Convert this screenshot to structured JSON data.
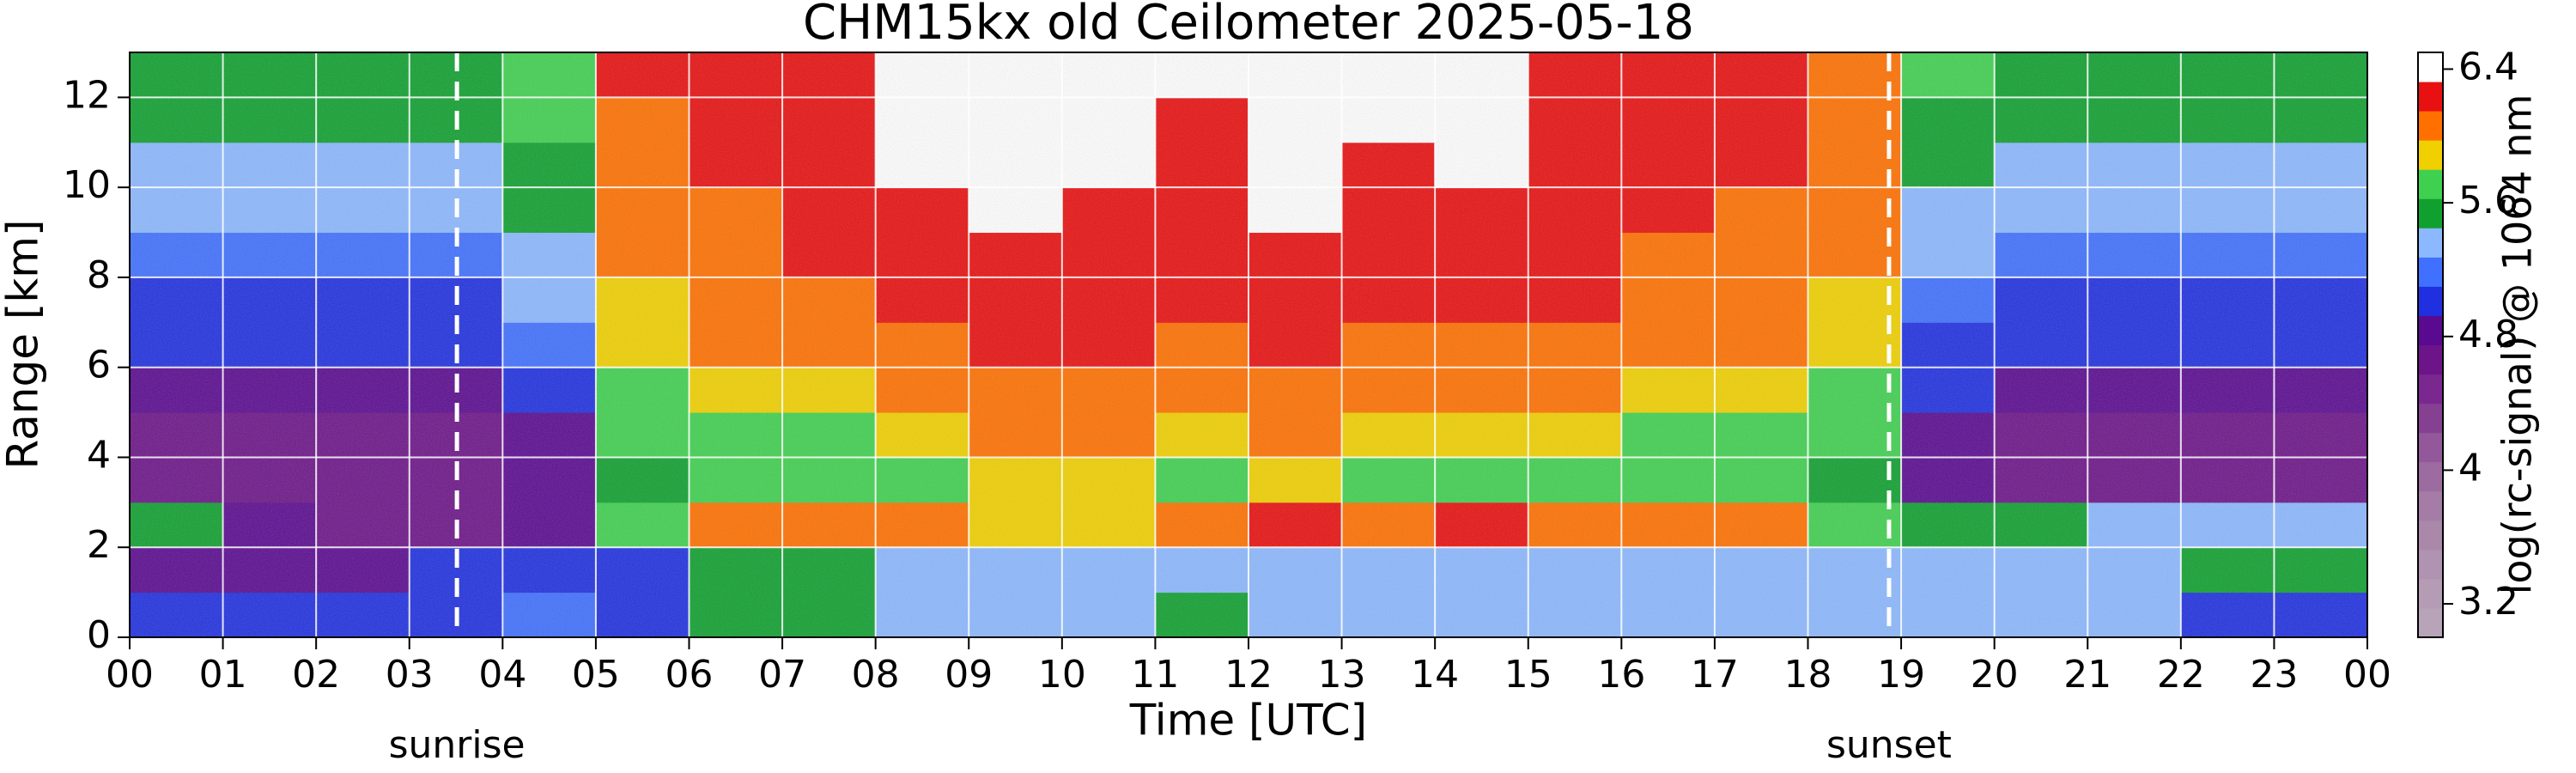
{
  "chart_data": {
    "type": "heatmap",
    "title": "CHM15kx old Ceilometer 2025-05-18",
    "xlabel": "Time [UTC]",
    "ylabel": "Range [km]",
    "colorbar_label": "log(rc-signal) @ 1064 nm",
    "xlim": [
      0,
      24
    ],
    "ylim": [
      0,
      13
    ],
    "xticks": [
      {
        "value": 0,
        "label": "00"
      },
      {
        "value": 1,
        "label": "01"
      },
      {
        "value": 2,
        "label": "02"
      },
      {
        "value": 3,
        "label": "03"
      },
      {
        "value": 4,
        "label": "04"
      },
      {
        "value": 5,
        "label": "05"
      },
      {
        "value": 6,
        "label": "06"
      },
      {
        "value": 7,
        "label": "07"
      },
      {
        "value": 8,
        "label": "08"
      },
      {
        "value": 9,
        "label": "09"
      },
      {
        "value": 10,
        "label": "10"
      },
      {
        "value": 11,
        "label": "11"
      },
      {
        "value": 12,
        "label": "12"
      },
      {
        "value": 13,
        "label": "13"
      },
      {
        "value": 14,
        "label": "14"
      },
      {
        "value": 15,
        "label": "15"
      },
      {
        "value": 16,
        "label": "16"
      },
      {
        "value": 17,
        "label": "17"
      },
      {
        "value": 18,
        "label": "18"
      },
      {
        "value": 19,
        "label": "19"
      },
      {
        "value": 20,
        "label": "20"
      },
      {
        "value": 21,
        "label": "21"
      },
      {
        "value": 22,
        "label": "22"
      },
      {
        "value": 23,
        "label": "23"
      },
      {
        "value": 24,
        "label": "00"
      }
    ],
    "yticks": [
      0,
      2,
      4,
      6,
      8,
      10,
      12
    ],
    "grid": true,
    "grid_color": "#ffffff",
    "zlim": [
      3.0,
      6.5
    ],
    "zticks": [
      3.2,
      4,
      4.8,
      5.6,
      6.4
    ],
    "colormap": [
      "#b8a4b8",
      "#b59cb5",
      "#b093b0",
      "#aa88aa",
      "#a47ca6",
      "#9c6ca0",
      "#92589a",
      "#864092",
      "#7a2890",
      "#6c1488",
      "#5a0a90",
      "#2030e0",
      "#4070ff",
      "#8cb8ff",
      "#10a030",
      "#40d050",
      "#f0d000",
      "#ff7000",
      "#e81010",
      "#ffffff"
    ],
    "xbins": [
      0,
      1,
      2,
      3,
      4,
      5,
      6,
      7,
      8,
      9,
      10,
      11,
      12,
      13,
      14,
      15,
      16,
      17,
      18,
      19,
      20,
      21,
      22,
      23,
      24
    ],
    "ybins": [
      0,
      1,
      2,
      3,
      4,
      5,
      6,
      7,
      8,
      9,
      10,
      11,
      12,
      13
    ],
    "z": [
      [
        5.1,
        5.1,
        5.0,
        5.1,
        5.2,
        5.1,
        5.5,
        5.5,
        5.4,
        5.3,
        5.3,
        5.5,
        5.3,
        5.3,
        5.3,
        5.3,
        5.3,
        5.3,
        5.3,
        5.3,
        5.3,
        5.3,
        5.1,
        5.1
      ],
      [
        4.9,
        4.9,
        4.9,
        5.1,
        5.1,
        5.0,
        5.5,
        5.6,
        5.4,
        5.3,
        5.3,
        5.4,
        5.3,
        5.3,
        5.3,
        5.4,
        5.4,
        5.4,
        5.3,
        5.3,
        5.3,
        5.4,
        5.5,
        5.5
      ],
      [
        5.5,
        4.8,
        4.7,
        4.7,
        4.8,
        5.8,
        6.1,
        6.0,
        6.1,
        5.9,
        5.9,
        6.1,
        6.2,
        6.0,
        6.2,
        6.0,
        6.1,
        6.1,
        5.8,
        5.6,
        5.6,
        5.4,
        5.4,
        5.4
      ],
      [
        4.6,
        4.6,
        4.6,
        4.6,
        4.8,
        5.6,
        5.7,
        5.7,
        5.8,
        5.9,
        5.9,
        5.8,
        5.9,
        5.8,
        5.8,
        5.8,
        5.7,
        5.7,
        5.6,
        4.8,
        4.6,
        4.6,
        4.6,
        4.6
      ],
      [
        4.7,
        4.7,
        4.7,
        4.7,
        4.9,
        5.7,
        5.8,
        5.8,
        5.9,
        6.0,
        6.0,
        5.9,
        6.0,
        5.9,
        5.9,
        5.9,
        5.8,
        5.8,
        5.7,
        4.9,
        4.7,
        4.7,
        4.7,
        4.7
      ],
      [
        4.8,
        4.8,
        4.8,
        4.8,
        5.0,
        5.8,
        5.9,
        5.9,
        6.0,
        6.1,
        6.1,
        6.0,
        6.1,
        6.0,
        6.0,
        6.0,
        5.9,
        5.9,
        5.8,
        5.0,
        4.8,
        4.8,
        4.8,
        4.8
      ],
      [
        5.0,
        5.0,
        5.0,
        5.0,
        5.2,
        5.9,
        6.0,
        6.0,
        6.1,
        6.2,
        6.2,
        6.1,
        6.2,
        6.1,
        6.1,
        6.1,
        6.0,
        6.0,
        5.9,
        5.1,
        5.0,
        5.0,
        5.0,
        5.0
      ],
      [
        5.1,
        5.1,
        5.1,
        5.1,
        5.3,
        5.9,
        6.0,
        6.1,
        6.2,
        6.3,
        6.3,
        6.2,
        6.3,
        6.2,
        6.2,
        6.2,
        6.1,
        6.0,
        5.9,
        5.2,
        5.1,
        5.1,
        5.1,
        5.1
      ],
      [
        5.2,
        5.2,
        5.2,
        5.2,
        5.4,
        6.0,
        6.1,
        6.2,
        6.3,
        6.3,
        6.3,
        6.2,
        6.3,
        6.2,
        6.3,
        6.2,
        6.1,
        6.1,
        6.0,
        5.3,
        5.2,
        5.2,
        5.2,
        5.2
      ],
      [
        5.3,
        5.3,
        5.3,
        5.3,
        5.5,
        6.0,
        6.1,
        6.2,
        6.3,
        6.4,
        6.3,
        6.3,
        6.4,
        6.3,
        6.3,
        6.3,
        6.2,
        6.1,
        6.0,
        5.4,
        5.3,
        5.3,
        5.3,
        5.3
      ],
      [
        5.4,
        5.4,
        5.4,
        5.4,
        5.6,
        6.1,
        6.2,
        6.3,
        6.4,
        6.4,
        6.4,
        6.3,
        6.4,
        6.3,
        6.4,
        6.3,
        6.2,
        6.2,
        6.1,
        5.5,
        5.4,
        5.4,
        5.4,
        5.4
      ],
      [
        5.5,
        5.5,
        5.5,
        5.5,
        5.7,
        6.1,
        6.2,
        6.3,
        6.4,
        6.4,
        6.4,
        6.3,
        6.4,
        6.4,
        6.4,
        6.3,
        6.2,
        6.2,
        6.1,
        5.6,
        5.5,
        5.5,
        5.5,
        5.5
      ],
      [
        5.6,
        5.6,
        5.6,
        5.6,
        5.8,
        6.2,
        6.2,
        6.3,
        6.4,
        6.4,
        6.4,
        6.4,
        6.4,
        6.4,
        6.4,
        6.3,
        6.3,
        6.2,
        6.1,
        5.7,
        5.6,
        5.6,
        5.6,
        5.6
      ]
    ],
    "vlines": [
      {
        "x": 3.51,
        "label": "sunrise"
      },
      {
        "x": 18.87,
        "label": "sunset"
      }
    ]
  }
}
